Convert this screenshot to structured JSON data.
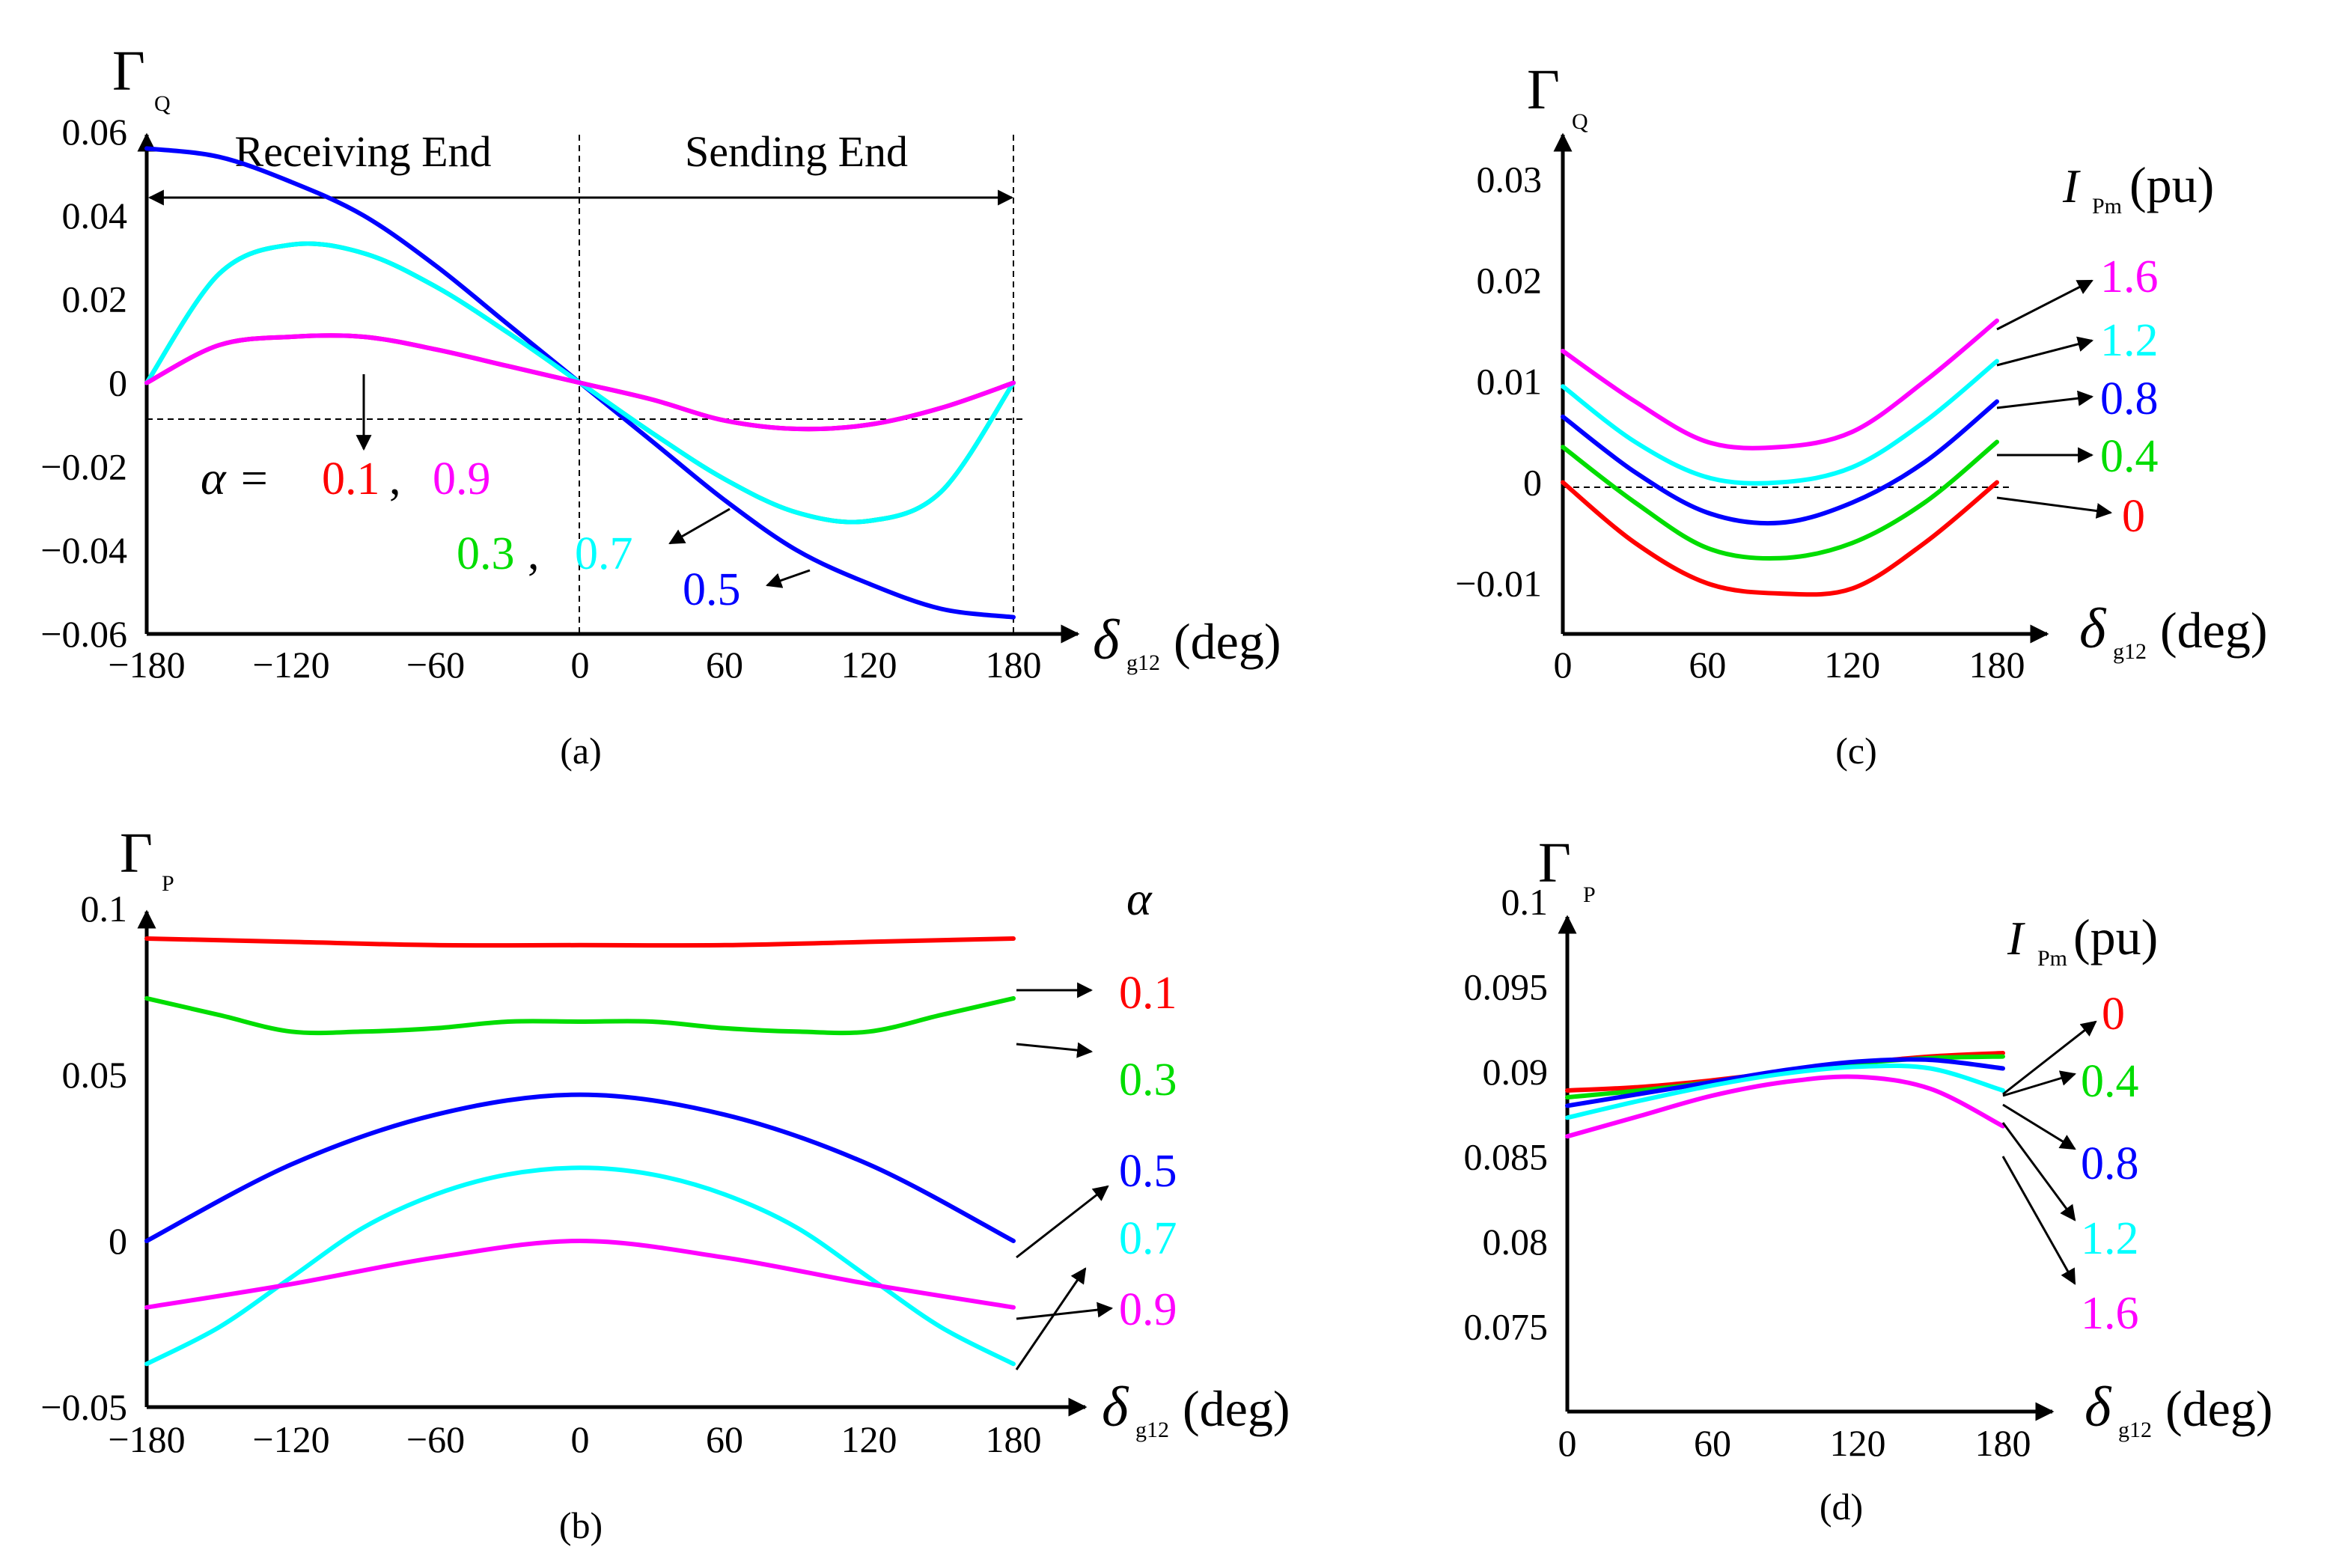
{
  "colors": {
    "alpha_0.1": "#ff0000",
    "alpha_0.3": "#00dd00",
    "alpha_0.5": "#0000ff",
    "alpha_0.7": "#00ffff",
    "alpha_0.9": "#ff00ff"
  },
  "chart_data": [
    {
      "panel": "a",
      "caption": "(a)",
      "type": "line",
      "ylabel": {
        "symbol": "Γ",
        "subscript": "Q"
      },
      "xlabel": {
        "symbol": "δ",
        "subscript": "g12",
        "unit": "(deg)"
      },
      "xlim": [
        -180,
        180
      ],
      "ylim": [
        -0.06,
        0.06
      ],
      "xticks": [
        "−180",
        "−120",
        "−60",
        "0",
        "60",
        "120",
        "180"
      ],
      "yticks": [
        "0.06",
        "0.04",
        "0.02",
        "0",
        "−0.02",
        "−0.04",
        "−0.06"
      ],
      "region_labels": [
        "Receiving End",
        "Sending End"
      ],
      "legend_prefix": "α =",
      "series": [
        {
          "name": "0.1",
          "x": [
            -180,
            -150,
            -120,
            -90,
            -60,
            -30,
            0,
            30,
            60,
            90,
            120,
            150,
            180
          ],
          "y": [
            0,
            0.009,
            0.011,
            0.011,
            0.008,
            0.004,
            0,
            -0.004,
            -0.009,
            -0.011,
            -0.01,
            -0.006,
            0
          ]
        },
        {
          "name": "0.3",
          "x": [
            -180,
            -150,
            -120,
            -90,
            -60,
            -30,
            0,
            30,
            60,
            90,
            120,
            150,
            180
          ],
          "y": [
            0,
            0.026,
            0.033,
            0.031,
            0.023,
            0.012,
            0,
            -0.012,
            -0.023,
            -0.031,
            -0.033,
            -0.026,
            0
          ]
        },
        {
          "name": "0.5",
          "x": [
            -180,
            -150,
            -120,
            -90,
            -60,
            -30,
            0,
            30,
            60,
            90,
            120,
            150,
            180
          ],
          "y": [
            0.056,
            0.054,
            0.048,
            0.04,
            0.028,
            0.014,
            0,
            -0.014,
            -0.028,
            -0.04,
            -0.048,
            -0.054,
            -0.056
          ]
        },
        {
          "name": "0.7",
          "x": [
            -180,
            -150,
            -120,
            -90,
            -60,
            -30,
            0,
            30,
            60,
            90,
            120,
            150,
            180
          ],
          "y": [
            0,
            0.026,
            0.033,
            0.031,
            0.023,
            0.012,
            0,
            -0.012,
            -0.023,
            -0.031,
            -0.033,
            -0.026,
            0
          ]
        },
        {
          "name": "0.9",
          "x": [
            -180,
            -150,
            -120,
            -90,
            -60,
            -30,
            0,
            30,
            60,
            90,
            120,
            150,
            180
          ],
          "y": [
            0,
            0.009,
            0.011,
            0.011,
            0.008,
            0.004,
            0,
            -0.004,
            -0.009,
            -0.011,
            -0.01,
            -0.006,
            0
          ]
        }
      ]
    },
    {
      "panel": "b",
      "caption": "(b)",
      "type": "line",
      "ylabel": {
        "symbol": "Γ",
        "subscript": "P"
      },
      "xlabel": {
        "symbol": "δ",
        "subscript": "g12",
        "unit": "(deg)"
      },
      "xlim": [
        -180,
        180
      ],
      "ylim": [
        -0.05,
        0.1
      ],
      "xticks": [
        "−180",
        "−120",
        "−60",
        "0",
        "60",
        "120",
        "180"
      ],
      "yticks": [
        "0.1",
        "0.05",
        "0",
        "−0.05"
      ],
      "legend_title": "α",
      "series": [
        {
          "name": "0.1",
          "x": [
            -180,
            -120,
            -60,
            0,
            60,
            120,
            180
          ],
          "y": [
            0.091,
            0.09,
            0.089,
            0.089,
            0.089,
            0.09,
            0.091
          ]
        },
        {
          "name": "0.3",
          "x": [
            -180,
            -150,
            -120,
            -90,
            -60,
            -30,
            0,
            30,
            60,
            90,
            120,
            150,
            180
          ],
          "y": [
            0.073,
            0.068,
            0.063,
            0.063,
            0.064,
            0.066,
            0.066,
            0.066,
            0.064,
            0.063,
            0.063,
            0.068,
            0.073
          ]
        },
        {
          "name": "0.5",
          "x": [
            -180,
            -120,
            -60,
            0,
            60,
            120,
            180
          ],
          "y": [
            0,
            0.023,
            0.038,
            0.044,
            0.038,
            0.023,
            0
          ]
        },
        {
          "name": "0.7",
          "x": [
            -180,
            -150,
            -120,
            -90,
            -60,
            -30,
            0,
            30,
            60,
            90,
            120,
            150,
            180
          ],
          "y": [
            -0.037,
            -0.026,
            -0.011,
            0.004,
            0.014,
            0.02,
            0.022,
            0.02,
            0.014,
            0.004,
            -0.011,
            -0.026,
            -0.037
          ]
        },
        {
          "name": "0.9",
          "x": [
            -180,
            -120,
            -60,
            0,
            60,
            120,
            180
          ],
          "y": [
            -0.02,
            -0.013,
            -0.005,
            0,
            -0.005,
            -0.013,
            -0.02
          ]
        }
      ]
    },
    {
      "panel": "c",
      "caption": "(c)",
      "type": "line",
      "ylabel": {
        "symbol": "Γ",
        "subscript": "Q"
      },
      "xlabel": {
        "symbol": "δ",
        "subscript": "g12",
        "unit": "(deg)"
      },
      "xlim": [
        0,
        180
      ],
      "ylim": [
        -0.015,
        0.035
      ],
      "xticks": [
        "0",
        "60",
        "120",
        "180"
      ],
      "yticks": [
        "0.03",
        "0.02",
        "0.01",
        "0",
        "−0.01"
      ],
      "legend_title": {
        "symbol": "I",
        "subscript": "Pm",
        "unit": "(pu)"
      },
      "series": [
        {
          "name": "1.6",
          "x": [
            0,
            30,
            60,
            90,
            120,
            150,
            180
          ],
          "y": [
            0.013,
            0.008,
            0.004,
            0.0035,
            0.005,
            0.01,
            0.016
          ]
        },
        {
          "name": "1.2",
          "x": [
            0,
            30,
            60,
            90,
            120,
            150,
            180
          ],
          "y": [
            0.0095,
            0.004,
            0.0005,
            0,
            0.0015,
            0.006,
            0.012
          ]
        },
        {
          "name": "0.8",
          "x": [
            0,
            30,
            60,
            90,
            120,
            150,
            180
          ],
          "y": [
            0.0065,
            0.001,
            -0.003,
            -0.004,
            -0.002,
            0.002,
            0.008
          ]
        },
        {
          "name": "0.4",
          "x": [
            0,
            30,
            60,
            90,
            120,
            150,
            180
          ],
          "y": [
            0.0035,
            -0.002,
            -0.0065,
            -0.0075,
            -0.006,
            -0.002,
            0.004
          ]
        },
        {
          "name": "0",
          "x": [
            0,
            30,
            60,
            90,
            120,
            150,
            180
          ],
          "y": [
            0,
            -0.006,
            -0.01,
            -0.011,
            -0.0105,
            -0.006,
            0
          ]
        }
      ]
    },
    {
      "panel": "d",
      "caption": "(d)",
      "type": "line",
      "ylabel": {
        "symbol": "Γ",
        "subscript": "P"
      },
      "xlabel": {
        "symbol": "δ",
        "subscript": "g12",
        "unit": "(deg)"
      },
      "xlim": [
        0,
        180
      ],
      "ylim": [
        0.07,
        0.1
      ],
      "xticks": [
        "0",
        "60",
        "120",
        "180"
      ],
      "yticks": [
        "0.1",
        "0.095",
        "0.09",
        "0.085",
        "0.08",
        "0.075"
      ],
      "legend_title": {
        "symbol": "I",
        "subscript": "Pm",
        "unit": "(pu)"
      },
      "series": [
        {
          "name": "0",
          "x": [
            0,
            30,
            60,
            90,
            120,
            150,
            180
          ],
          "y": [
            0.0889,
            0.0891,
            0.0895,
            0.09,
            0.0905,
            0.0909,
            0.0911
          ]
        },
        {
          "name": "0.4",
          "x": [
            0,
            30,
            60,
            90,
            120,
            150,
            180
          ],
          "y": [
            0.0885,
            0.0889,
            0.0894,
            0.09,
            0.0905,
            0.0908,
            0.0909
          ]
        },
        {
          "name": "0.8",
          "x": [
            0,
            30,
            60,
            90,
            120,
            150,
            180
          ],
          "y": [
            0.088,
            0.0887,
            0.0894,
            0.0901,
            0.0906,
            0.0907,
            0.0902
          ]
        },
        {
          "name": "1.2",
          "x": [
            0,
            30,
            60,
            90,
            120,
            150,
            180
          ],
          "y": [
            0.0873,
            0.0883,
            0.0892,
            0.0899,
            0.0903,
            0.0902,
            0.0889
          ]
        },
        {
          "name": "1.6",
          "x": [
            0,
            30,
            60,
            90,
            120,
            150,
            180
          ],
          "y": [
            0.0862,
            0.0874,
            0.0886,
            0.0894,
            0.0897,
            0.089,
            0.0868
          ]
        }
      ]
    }
  ]
}
